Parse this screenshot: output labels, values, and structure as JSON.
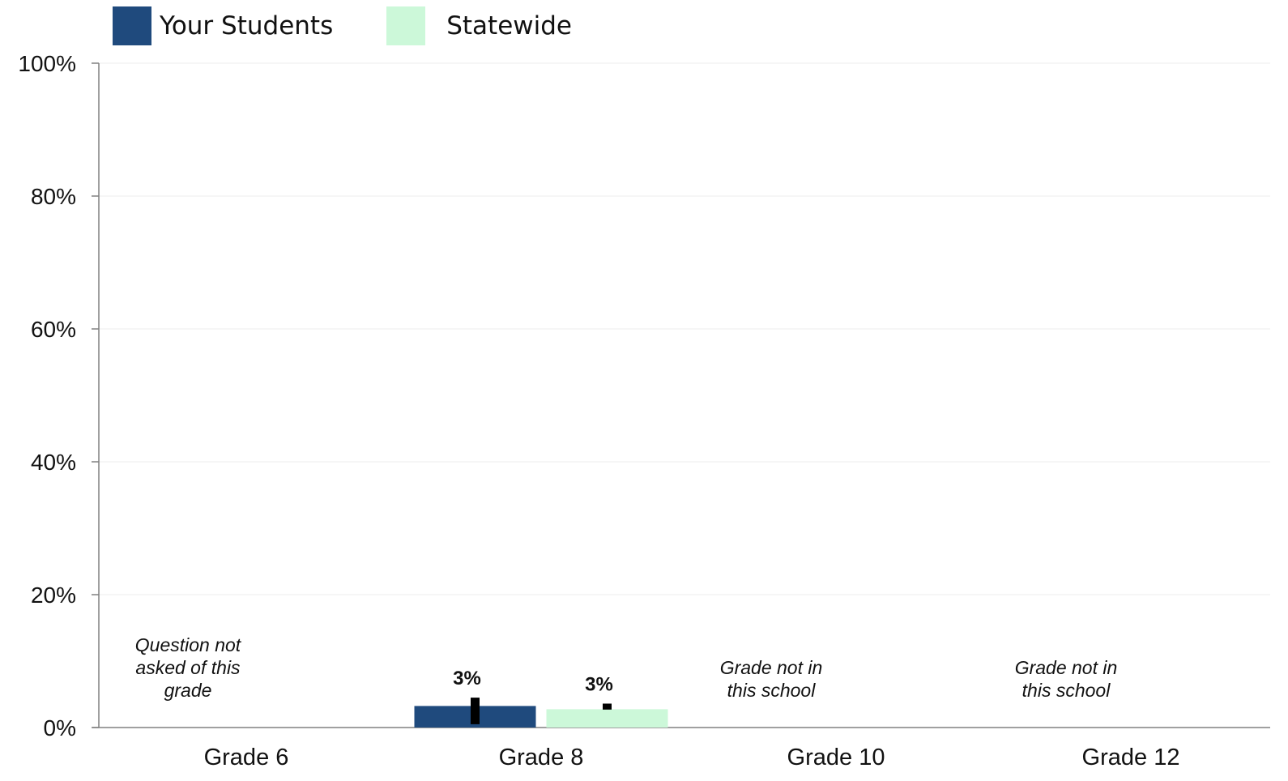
{
  "chart_data": {
    "type": "bar",
    "categories": [
      "Grade 6",
      "Grade 8",
      "Grade 10",
      "Grade 12"
    ],
    "series": [
      {
        "name": "Your Students",
        "color": "#1f4a7d",
        "values": [
          null,
          3,
          null,
          null
        ],
        "error": [
          null,
          [
            0.5,
            4.5
          ],
          null,
          null
        ]
      },
      {
        "name": "Statewide",
        "color": "#ccf8d9",
        "values": [
          null,
          3,
          null,
          null
        ],
        "error": [
          null,
          [
            2.7,
            3.6
          ],
          null,
          null
        ]
      }
    ],
    "value_labels": [
      null,
      [
        "3%",
        "3%"
      ],
      null,
      null
    ],
    "notes": [
      "Question not\nasked of this\ngrade",
      null,
      "Grade not in\nthis school",
      "Grade not in\nthis school"
    ],
    "ylim": [
      0,
      100
    ],
    "yticks": [
      0,
      20,
      40,
      60,
      80,
      100
    ],
    "ytick_labels": [
      "0%",
      "20%",
      "40%",
      "60%",
      "80%",
      "100%"
    ],
    "grid": true,
    "legend_position": "top-left"
  }
}
